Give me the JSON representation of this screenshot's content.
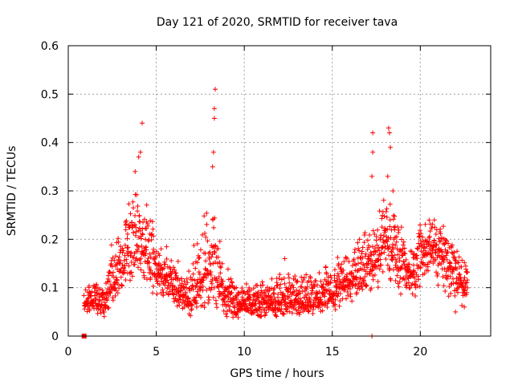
{
  "chart_data": {
    "type": "scatter",
    "title": "Day 121 of 2020, SRMTID for receiver tava",
    "xlabel": "GPS time / hours",
    "ylabel": "SRMTID / TECUs",
    "xlim": [
      0,
      24
    ],
    "ylim": [
      0,
      0.6
    ],
    "x_ticks": [
      0,
      5,
      10,
      15,
      20
    ],
    "x_tick_labels": [
      "0",
      "5",
      "10",
      "15",
      "20"
    ],
    "y_ticks": [
      0,
      0.1,
      0.2,
      0.3,
      0.4,
      0.5,
      0.6
    ],
    "y_tick_labels": [
      "0",
      "0.1",
      "0.2",
      "0.3",
      "0.4",
      "0.5",
      "0.6"
    ],
    "grid": true,
    "marker": "plus",
    "color": "#ff0000",
    "x_range_of_data": [
      0.9,
      22.7
    ],
    "envelope": {
      "x": [
        1,
        1.5,
        2,
        2.5,
        3,
        3.5,
        4,
        4.5,
        5,
        5.5,
        6,
        6.5,
        7,
        7.5,
        8,
        8.5,
        9,
        9.5,
        10,
        11,
        12,
        13,
        14,
        15,
        15.5,
        16,
        16.5,
        17,
        17.5,
        18,
        18.5,
        19,
        19.5,
        20,
        20.5,
        21,
        21.5,
        22,
        22.7
      ],
      "median": [
        0.07,
        0.075,
        0.065,
        0.1,
        0.15,
        0.15,
        0.2,
        0.17,
        0.13,
        0.12,
        0.1,
        0.09,
        0.08,
        0.11,
        0.14,
        0.12,
        0.08,
        0.07,
        0.065,
        0.07,
        0.07,
        0.07,
        0.08,
        0.09,
        0.11,
        0.12,
        0.13,
        0.15,
        0.16,
        0.2,
        0.18,
        0.15,
        0.13,
        0.16,
        0.19,
        0.18,
        0.15,
        0.13,
        0.1
      ],
      "upper": [
        0.11,
        0.12,
        0.1,
        0.2,
        0.25,
        0.3,
        0.33,
        0.3,
        0.2,
        0.19,
        0.17,
        0.14,
        0.17,
        0.25,
        0.3,
        0.25,
        0.15,
        0.12,
        0.11,
        0.12,
        0.13,
        0.13,
        0.14,
        0.16,
        0.18,
        0.2,
        0.21,
        0.23,
        0.26,
        0.3,
        0.27,
        0.23,
        0.2,
        0.24,
        0.26,
        0.25,
        0.22,
        0.2,
        0.17
      ],
      "lower": [
        0.045,
        0.045,
        0.035,
        0.06,
        0.09,
        0.1,
        0.12,
        0.1,
        0.08,
        0.07,
        0.06,
        0.05,
        0.035,
        0.05,
        0.06,
        0.05,
        0.04,
        0.035,
        0.035,
        0.04,
        0.04,
        0.04,
        0.045,
        0.05,
        0.06,
        0.07,
        0.07,
        0.08,
        0.09,
        0.1,
        0.09,
        0.08,
        0.07,
        0.08,
        0.1,
        0.1,
        0.08,
        0.07,
        0.05
      ]
    },
    "peaks": [
      {
        "x": 4.2,
        "y": 0.44
      },
      {
        "x": 4.1,
        "y": 0.38
      },
      {
        "x": 4.0,
        "y": 0.37
      },
      {
        "x": 3.8,
        "y": 0.34
      },
      {
        "x": 8.35,
        "y": 0.51
      },
      {
        "x": 8.3,
        "y": 0.47
      },
      {
        "x": 8.3,
        "y": 0.45
      },
      {
        "x": 8.25,
        "y": 0.38
      },
      {
        "x": 8.2,
        "y": 0.35
      },
      {
        "x": 17.3,
        "y": 0.42
      },
      {
        "x": 17.3,
        "y": 0.38
      },
      {
        "x": 17.25,
        "y": 0.33
      },
      {
        "x": 18.2,
        "y": 0.43
      },
      {
        "x": 18.25,
        "y": 0.42
      },
      {
        "x": 18.3,
        "y": 0.39
      },
      {
        "x": 18.15,
        "y": 0.33
      },
      {
        "x": 18.45,
        "y": 0.3
      },
      {
        "x": 17.25,
        "y": 0.0
      },
      {
        "x": 12.3,
        "y": 0.16
      },
      {
        "x": 22.0,
        "y": 0.05
      },
      {
        "x": 22.5,
        "y": 0.06
      }
    ],
    "square_markers": [
      {
        "x": 0.9,
        "y": 0.0
      }
    ]
  }
}
